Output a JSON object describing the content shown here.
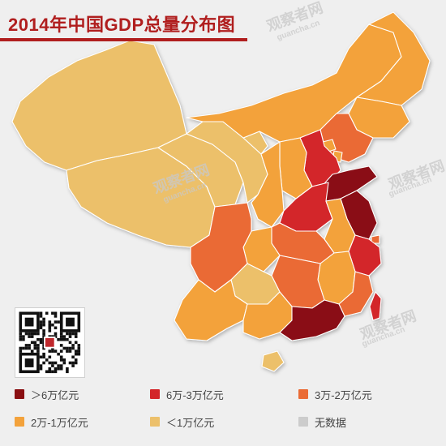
{
  "title": "2014年中国GDP总量分布图",
  "watermark": {
    "main": "观察者网",
    "sub": "guancha.cn"
  },
  "legend": {
    "items": [
      {
        "label": "＞6万亿元",
        "color": "#8a0f12"
      },
      {
        "label": "6万-3万亿元",
        "color": "#d3262a"
      },
      {
        "label": "3万-2万亿元",
        "color": "#ea6b35"
      },
      {
        "label": "2万-1万亿元",
        "color": "#f3a23b"
      },
      {
        "label": "＜1万亿元",
        "color": "#ecc06b"
      },
      {
        "label": "无数据",
        "color": "#cccccc"
      }
    ]
  },
  "map_data": {
    "regions": [
      {
        "name": "Guangdong",
        "category": 0
      },
      {
        "name": "Jiangsu",
        "category": 0
      },
      {
        "name": "Shandong",
        "category": 0
      },
      {
        "name": "Zhejiang",
        "category": 1
      },
      {
        "name": "Henan",
        "category": 1
      },
      {
        "name": "Hebei",
        "category": 1
      },
      {
        "name": "Liaoning",
        "category": 2
      },
      {
        "name": "Sichuan",
        "category": 2
      },
      {
        "name": "Hubei",
        "category": 2
      },
      {
        "name": "Hunan",
        "category": 2
      },
      {
        "name": "Fujian",
        "category": 2
      },
      {
        "name": "Shanghai",
        "category": 2
      },
      {
        "name": "Taiwan",
        "category": 1
      },
      {
        "name": "Heilongjiang",
        "category": 3
      },
      {
        "name": "Jilin",
        "category": 3
      },
      {
        "name": "Inner Mongolia",
        "category": 3
      },
      {
        "name": "Shaanxi",
        "category": 3
      },
      {
        "name": "Anhui",
        "category": 3
      },
      {
        "name": "Jiangxi",
        "category": 3
      },
      {
        "name": "Guangxi",
        "category": 3
      },
      {
        "name": "Yunnan",
        "category": 3
      },
      {
        "name": "Shanxi",
        "category": 3
      },
      {
        "name": "Chongqing",
        "category": 3
      },
      {
        "name": "Beijing",
        "category": 3
      },
      {
        "name": "Tianjin",
        "category": 3
      },
      {
        "name": "Xinjiang",
        "category": 4
      },
      {
        "name": "Tibet",
        "category": 4
      },
      {
        "name": "Qinghai",
        "category": 4
      },
      {
        "name": "Gansu",
        "category": 4
      },
      {
        "name": "Ningxia",
        "category": 4
      },
      {
        "name": "Guizhou",
        "category": 4
      },
      {
        "name": "Hainan",
        "category": 4
      }
    ]
  }
}
